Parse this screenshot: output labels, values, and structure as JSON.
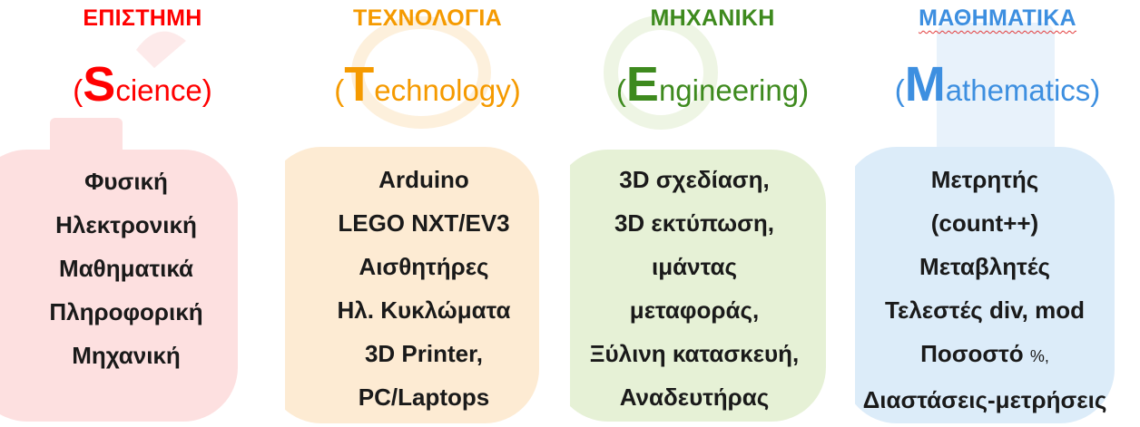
{
  "columns": [
    {
      "heading": "ΕΠΙΣΤΗΜΗ",
      "open": "(",
      "initial": "S",
      "rest": "cience",
      "close": ")",
      "color": "#ff0000",
      "bg_color": "#fde0e0",
      "bg_letter": "S",
      "items": [
        "Φυσική",
        "Ηλεκτρονική",
        "Μαθηματικά",
        "Πληροφορική",
        "Μηχανική"
      ]
    },
    {
      "heading": "ΤΕΧΝΟΛΟΓΙΑ",
      "open": "(",
      "initial": "T",
      "rest": "echnology",
      "close": ")",
      "color": "#f59a00",
      "bg_color": "#fdebd3",
      "bg_letter": "T",
      "items": [
        "Arduino",
        "LEGO NXT/EV3",
        "Αισθητήρες",
        "Ηλ. Κυκλώματα",
        "3D Printer,",
        "PC/Laptops"
      ]
    },
    {
      "heading": "ΜΗΧΑΝΙΚΗ",
      "open": "(",
      "initial": "E",
      "rest": "ngineering",
      "close": ")",
      "color": "#3e8a1e",
      "bg_color": "#e6f1d6",
      "bg_letter": "E",
      "items": [
        "3D σχεδίαση,",
        "3D εκτύπωση,",
        "ιμάντας",
        "μεταφοράς,",
        "Ξύλινη κατασκευή,",
        "Αναδευτήρας"
      ]
    },
    {
      "heading": "ΜΑΘΗΜΑΤΙΚΑ",
      "open": "(",
      "initial": "M",
      "rest": "athematics",
      "close": ")",
      "color": "#3d8fe0",
      "bg_color": "#dcecf9",
      "bg_letter": "M",
      "items": [
        "Μετρητής",
        "(count++)",
        "Μεταβλητές",
        "Τελεστές div, mod",
        "Ποσοστό",
        "Διαστάσεις-μετρήσεις"
      ],
      "percent_sign": "%,"
    }
  ]
}
